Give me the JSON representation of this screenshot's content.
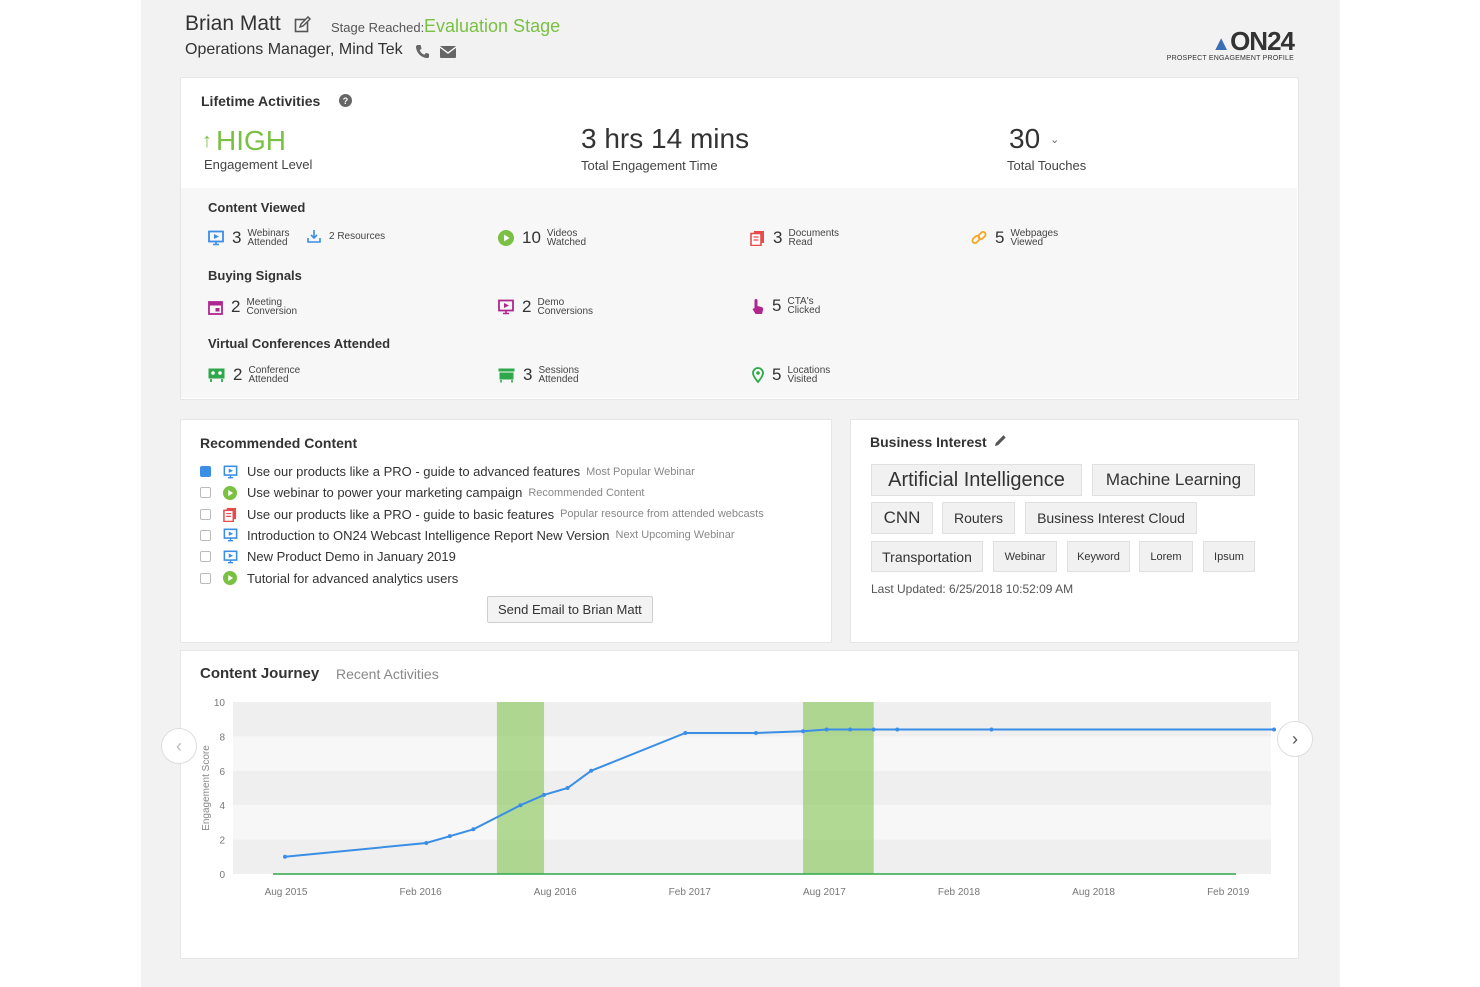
{
  "header": {
    "name": "Brian Matt",
    "stage_label": "Stage Reached:",
    "stage_value": "Evaluation Stage",
    "subtitle": "Operations Manager, Mind Tek",
    "logo": "ON24",
    "logo_sub": "PROSPECT ENGAGEMENT PROFILE"
  },
  "lifetime": {
    "title": "Lifetime Activities",
    "engagement_value": "HIGH",
    "engagement_label": "Engagement Level",
    "time_value": "3 hrs 14 mins",
    "time_label": "Total Engagement Time",
    "touches_value": "30",
    "touches_label": "Total Touches"
  },
  "content_viewed": {
    "title": "Content Viewed",
    "webinars": {
      "num": "3",
      "l1": "Webinars",
      "l2": "Attended"
    },
    "resources": "2 Resources",
    "videos": {
      "num": "10",
      "l1": "Videos",
      "l2": "Watched"
    },
    "documents": {
      "num": "3",
      "l1": "Documents",
      "l2": "Read"
    },
    "webpages": {
      "num": "5",
      "l1": "Webpages",
      "l2": "Viewed"
    }
  },
  "buying_signals": {
    "title": "Buying Signals",
    "meeting": {
      "num": "2",
      "l1": "Meeting",
      "l2": "Conversion"
    },
    "demo": {
      "num": "2",
      "l1": "Demo",
      "l2": "Conversions"
    },
    "cta": {
      "num": "5",
      "l1": "CTA's",
      "l2": "Clicked"
    }
  },
  "virtual_conferences": {
    "title": "Virtual Conferences Attended",
    "conference": {
      "num": "2",
      "l1": "Conference",
      "l2": "Attended"
    },
    "sessions": {
      "num": "3",
      "l1": "Sessions",
      "l2": "Attended"
    },
    "locations": {
      "num": "5",
      "l1": "Locations",
      "l2": "Visited"
    }
  },
  "recommended": {
    "title": "Recommended Content",
    "items": [
      {
        "text": "Use our products like a PRO - guide to advanced features",
        "note": "Most Popular Webinar",
        "checked": true,
        "icon": "webinar-icon"
      },
      {
        "text": "Use webinar to power your marketing campaign",
        "note": "Recommended Content",
        "checked": false,
        "icon": "video-icon"
      },
      {
        "text": "Use our products like a PRO - guide to basic features",
        "note": "Popular resource from attended webcasts",
        "checked": false,
        "icon": "document-icon"
      },
      {
        "text": "Introduction to ON24 Webcast Intelligence Report New Version",
        "note": "Next Upcoming Webinar",
        "checked": false,
        "icon": "webinar-icon"
      },
      {
        "text": "New Product Demo in January 2019",
        "note": "",
        "checked": false,
        "icon": "webinar-icon"
      },
      {
        "text": "Tutorial for advanced analytics users",
        "note": "",
        "checked": false,
        "icon": "video-icon"
      }
    ],
    "button": "Send Email to Brian Matt"
  },
  "business_interest": {
    "title": "Business Interest",
    "tags": [
      "Artificial Intelligence",
      "Machine Learning",
      "CNN",
      "Routers",
      "Business Interest Cloud",
      "Transportation",
      "Webinar",
      "Keyword",
      "Lorem",
      "Ipsum"
    ],
    "last_updated": "Last Updated: 6/25/2018 10:52:09 AM"
  },
  "journey": {
    "tab_active": "Content Journey",
    "tab_other": "Recent Activities"
  },
  "chart_data": {
    "type": "line",
    "title": "",
    "xlabel": "",
    "ylabel": "Engagement Score",
    "ylim": [
      0,
      10
    ],
    "yticks": [
      0,
      2,
      4,
      6,
      8,
      10
    ],
    "xticks": [
      "Aug 2015",
      "Feb 2016",
      "Aug 2016",
      "Feb 2017",
      "Aug 2017",
      "Feb 2018",
      "Aug 2018",
      "Feb 2019"
    ],
    "series": [
      {
        "x": [
          "2015-08",
          "2016-02",
          "2016-03",
          "2016-04",
          "2016-06",
          "2016-07",
          "2016-08",
          "2016-09",
          "2017-01",
          "2017-04",
          "2017-06",
          "2017-07",
          "2017-08",
          "2017-09",
          "2017-10",
          "2018-02",
          "2019-02"
        ],
        "values": [
          1.0,
          1.8,
          2.2,
          2.6,
          4.0,
          4.6,
          5.0,
          6.0,
          8.2,
          8.2,
          8.3,
          8.4,
          8.4,
          8.4,
          8.4,
          8.4,
          8.4
        ]
      }
    ],
    "highlight_ranges": [
      [
        "2016-05",
        "2016-07"
      ],
      [
        "2017-06",
        "2017-09"
      ]
    ],
    "grid": true
  }
}
